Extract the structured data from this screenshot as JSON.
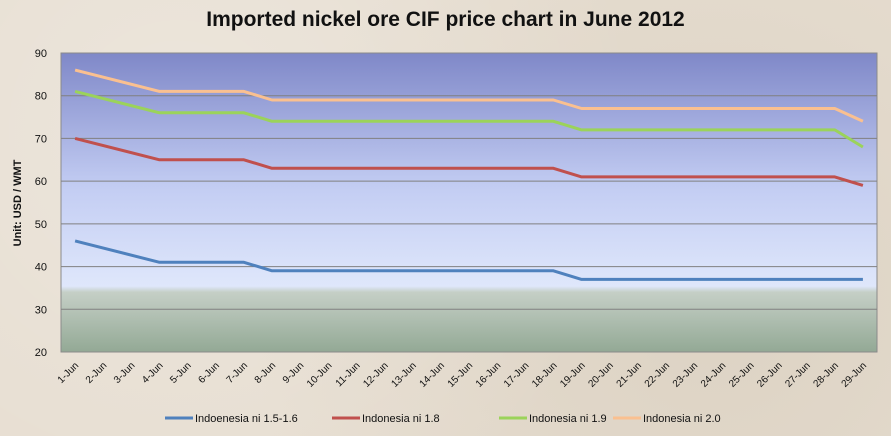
{
  "chart_data": {
    "type": "line",
    "title": "Imported nickel ore CIF price chart in June 2012",
    "xlabel": "",
    "ylabel": "Unit: USD / WMT",
    "ylim": [
      20,
      90
    ],
    "yticks": [
      20,
      30,
      40,
      50,
      60,
      70,
      80,
      90
    ],
    "grid": true,
    "legend": "bottom",
    "categories": [
      "1-Jun",
      "2-Jun",
      "3-Jun",
      "4-Jun",
      "5-Jun",
      "6-Jun",
      "7-Jun",
      "8-Jun",
      "9-Jun",
      "10-Jun",
      "11-Jun",
      "12-Jun",
      "13-Jun",
      "14-Jun",
      "15-Jun",
      "16-Jun",
      "17-Jun",
      "18-Jun",
      "19-Jun",
      "20-Jun",
      "21-Jun",
      "22-Jun",
      "23-Jun",
      "24-Jun",
      "25-Jun",
      "26-Jun",
      "27-Jun",
      "28-Jun",
      "29-Jun"
    ],
    "series": [
      {
        "name": "Indoenesia ni 1.5-1.6",
        "color": "#4f81bd",
        "values": [
          46,
          null,
          null,
          41,
          41,
          41,
          41,
          39,
          39,
          39,
          39,
          39,
          39,
          39,
          39,
          39,
          39,
          39,
          37,
          37,
          37,
          37,
          37,
          37,
          37,
          37,
          37,
          37,
          37
        ]
      },
      {
        "name": "Indonesia ni 1.8",
        "color": "#c0504d",
        "values": [
          70,
          null,
          null,
          65,
          65,
          65,
          65,
          63,
          63,
          63,
          63,
          63,
          63,
          63,
          63,
          63,
          63,
          63,
          61,
          61,
          61,
          61,
          61,
          61,
          61,
          61,
          61,
          61,
          59
        ]
      },
      {
        "name": "Indonesia ni 1.9",
        "color": "#9bd35a",
        "values": [
          81,
          null,
          null,
          76,
          76,
          76,
          76,
          74,
          74,
          74,
          74,
          74,
          74,
          74,
          74,
          74,
          74,
          74,
          72,
          72,
          72,
          72,
          72,
          72,
          72,
          72,
          72,
          72,
          68
        ]
      },
      {
        "name": "Indonesia ni 2.0",
        "color": "#fac090",
        "values": [
          86,
          null,
          null,
          81,
          81,
          81,
          81,
          79,
          79,
          79,
          79,
          79,
          79,
          79,
          79,
          79,
          79,
          79,
          77,
          77,
          77,
          77,
          77,
          77,
          77,
          77,
          77,
          77,
          74
        ]
      }
    ]
  }
}
